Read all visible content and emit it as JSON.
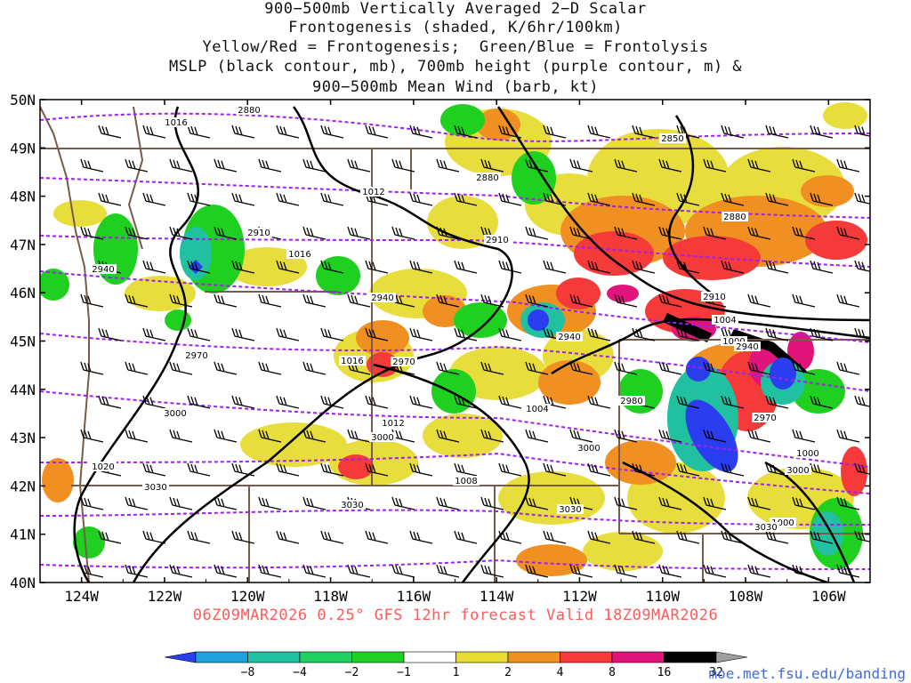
{
  "title": {
    "lines": [
      "900−500mb Vertically Averaged 2−D Scalar",
      "Frontogenesis (shaded, K/6hr/100km)",
      "Yellow/Red = Frontogenesis;  Green/Blue = Frontolysis",
      "MSLP (black contour, mb), 700mb height (purple contour, m) &",
      "900−500mb Mean Wind (barb, kt)"
    ]
  },
  "map": {
    "lat_labels": [
      "50N",
      "49N",
      "48N",
      "47N",
      "46N",
      "45N",
      "44N",
      "43N",
      "42N",
      "41N",
      "40N"
    ],
    "lon_labels": [
      "124W",
      "122W",
      "120W",
      "118W",
      "116W",
      "114W",
      "112W",
      "110W",
      "108W",
      "106W"
    ],
    "mslp_labels": [
      "1016",
      "1012",
      "1016",
      "1016",
      "1012",
      "1008",
      "1004",
      "1004",
      "1000",
      "1000",
      "1020",
      "1000"
    ],
    "height_labels": [
      "2880",
      "2850",
      "2880",
      "2880",
      "2910",
      "2910",
      "2910",
      "2940",
      "2940",
      "2940",
      "2970",
      "2970",
      "2970",
      "3000",
      "3000",
      "3000",
      "3000",
      "3030",
      "3030",
      "3030",
      "3030",
      "2940",
      "2980"
    ],
    "colors": {
      "mslp": "#000000",
      "height": "#a020f0",
      "borders": "#7a5a48",
      "barbs": "#000000"
    }
  },
  "footer": {
    "caption": "06Z09MAR2026 0.25° GFS 12hr forecast Valid 18Z09MAR2026",
    "caption_color": "#ff5a5a",
    "credit": "moe.met.fsu.edu/banding"
  },
  "colorbar": {
    "labels": [
      "−8",
      "−4",
      "−2",
      "−1",
      "1",
      "2",
      "4",
      "8",
      "16",
      "32"
    ],
    "colors": [
      "#2a3ef0",
      "#20a0e0",
      "#20c0a0",
      "#20d060",
      "#20d020",
      "#ffffff",
      "#e6dc32",
      "#f09022",
      "#f53a3a",
      "#e0147a",
      "#000000",
      "#a0a0a0"
    ]
  }
}
